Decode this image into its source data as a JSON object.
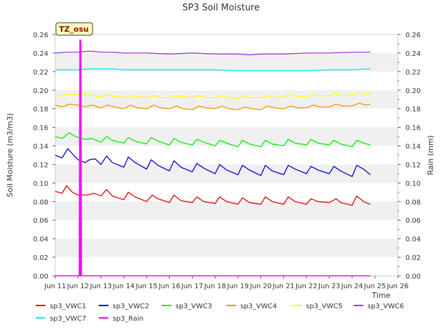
{
  "chart_data": {
    "type": "line",
    "title": "SP3 Soil Moisture",
    "xlabel": "Time",
    "ylabel": "Soil Moisture (m3/m3)",
    "y2label": "Rain (mm)",
    "badge": "TZ_osu",
    "x_unit": "days (Jun)",
    "xlim": [
      11,
      26
    ],
    "ylim": [
      0,
      0.26
    ],
    "y2lim": [
      0,
      0.26
    ],
    "x_ticks": [
      11,
      12,
      13,
      14,
      15,
      16,
      17,
      18,
      19,
      20,
      21,
      22,
      23,
      24,
      25,
      26
    ],
    "x_tick_labels": [
      "Jun 11",
      "Jun 12",
      "Jun 13",
      "Jun 14",
      "Jun 15",
      "Jun 16",
      "Jun 17",
      "Jun 18",
      "Jun 19",
      "Jun 20",
      "Jun 21",
      "Jun 22",
      "Jun 23",
      "Jun 24",
      "Jun 25",
      "Jun 26"
    ],
    "y_ticks": [
      0.0,
      0.02,
      0.04,
      0.06,
      0.08,
      0.1,
      0.12,
      0.14,
      0.16,
      0.18,
      0.2,
      0.22,
      0.24,
      0.26
    ],
    "y_tick_labels": [
      "0.00",
      "0.02",
      "0.04",
      "0.06",
      "0.08",
      "0.10",
      "0.12",
      "0.14",
      "0.16",
      "0.18",
      "0.20",
      "0.22",
      "0.24",
      "0.26"
    ],
    "y2_ticks": [
      0.0,
      0.02,
      0.04,
      0.06,
      0.08,
      0.1,
      0.12,
      0.14,
      0.16,
      0.18,
      0.2,
      0.22,
      0.24,
      0.26
    ],
    "y2_tick_labels": [
      "0.00",
      "0.02",
      "0.04",
      "0.06",
      "0.08",
      "0.10",
      "0.12",
      "0.14",
      "0.16",
      "0.18",
      "0.20",
      "0.22",
      "0.24",
      "0.26"
    ],
    "grid": "horizontal bands",
    "legend_placement": "bottom",
    "series": [
      {
        "name": "sp3_VWC1",
        "color": "#dd0000",
        "axis": "left",
        "x": [
          11.0,
          11.3,
          11.5,
          11.75,
          12.0,
          12.4,
          12.7,
          13.0,
          13.25,
          13.5,
          14.0,
          14.2,
          14.5,
          15.0,
          15.25,
          15.5,
          16.0,
          16.2,
          16.5,
          17.0,
          17.2,
          17.5,
          18.0,
          18.2,
          18.5,
          19.0,
          19.2,
          19.5,
          20.0,
          20.2,
          20.5,
          21.0,
          21.2,
          21.5,
          22.0,
          22.2,
          22.5,
          23.0,
          23.3,
          23.5,
          24.0,
          24.2,
          24.5,
          24.8
        ],
        "y": [
          0.091,
          0.089,
          0.097,
          0.09,
          0.087,
          0.087,
          0.089,
          0.086,
          0.093,
          0.086,
          0.082,
          0.09,
          0.085,
          0.08,
          0.087,
          0.083,
          0.079,
          0.087,
          0.081,
          0.079,
          0.085,
          0.08,
          0.078,
          0.085,
          0.08,
          0.077,
          0.084,
          0.079,
          0.077,
          0.085,
          0.08,
          0.077,
          0.085,
          0.08,
          0.077,
          0.083,
          0.08,
          0.079,
          0.083,
          0.079,
          0.076,
          0.086,
          0.08,
          0.077
        ]
      },
      {
        "name": "sp3_VWC2",
        "color": "#0000cc",
        "axis": "left",
        "x": [
          11.0,
          11.3,
          11.55,
          11.8,
          12.0,
          12.3,
          12.5,
          12.75,
          13.0,
          13.25,
          13.5,
          14.0,
          14.2,
          14.5,
          15.0,
          15.2,
          15.5,
          16.0,
          16.2,
          16.5,
          17.0,
          17.2,
          17.5,
          18.0,
          18.2,
          18.5,
          19.0,
          19.2,
          19.5,
          20.0,
          20.2,
          20.5,
          21.0,
          21.2,
          21.5,
          22.0,
          22.2,
          22.5,
          23.0,
          23.2,
          23.5,
          24.0,
          24.2,
          24.5,
          24.8
        ],
        "y": [
          0.13,
          0.127,
          0.137,
          0.13,
          0.125,
          0.122,
          0.125,
          0.126,
          0.12,
          0.129,
          0.122,
          0.117,
          0.128,
          0.122,
          0.115,
          0.125,
          0.119,
          0.113,
          0.124,
          0.117,
          0.112,
          0.121,
          0.116,
          0.11,
          0.12,
          0.114,
          0.109,
          0.119,
          0.114,
          0.108,
          0.119,
          0.113,
          0.109,
          0.119,
          0.115,
          0.11,
          0.118,
          0.114,
          0.11,
          0.118,
          0.113,
          0.107,
          0.119,
          0.115,
          0.109
        ]
      },
      {
        "name": "sp3_VWC3",
        "color": "#00ee00",
        "axis": "left",
        "x": [
          11.0,
          11.3,
          11.6,
          11.9,
          12.0,
          12.3,
          12.6,
          13.0,
          13.25,
          13.5,
          14.0,
          14.2,
          14.5,
          15.0,
          15.2,
          15.5,
          16.0,
          16.2,
          16.5,
          17.0,
          17.2,
          17.5,
          18.0,
          18.2,
          18.5,
          19.0,
          19.2,
          19.5,
          20.0,
          20.2,
          20.5,
          21.0,
          21.2,
          21.5,
          22.0,
          22.2,
          22.5,
          23.0,
          23.2,
          23.5,
          24.0,
          24.2,
          24.5,
          24.8
        ],
        "y": [
          0.15,
          0.148,
          0.154,
          0.15,
          0.149,
          0.147,
          0.148,
          0.144,
          0.15,
          0.146,
          0.143,
          0.149,
          0.145,
          0.142,
          0.149,
          0.145,
          0.141,
          0.148,
          0.144,
          0.141,
          0.147,
          0.144,
          0.14,
          0.146,
          0.143,
          0.139,
          0.146,
          0.142,
          0.139,
          0.146,
          0.142,
          0.14,
          0.147,
          0.143,
          0.141,
          0.147,
          0.143,
          0.141,
          0.146,
          0.142,
          0.139,
          0.146,
          0.143,
          0.141
        ]
      },
      {
        "name": "sp3_VWC4",
        "color": "#ee9900",
        "axis": "left",
        "x": [
          11.0,
          11.3,
          11.6,
          12.0,
          12.3,
          12.6,
          13.0,
          13.3,
          13.6,
          14.0,
          14.3,
          14.6,
          15.0,
          15.3,
          15.6,
          16.0,
          16.3,
          16.6,
          17.0,
          17.3,
          17.6,
          18.0,
          18.3,
          18.6,
          19.0,
          19.3,
          19.6,
          20.0,
          20.3,
          20.6,
          21.0,
          21.3,
          21.6,
          22.0,
          22.3,
          22.6,
          23.0,
          23.3,
          23.6,
          24.0,
          24.3,
          24.6,
          24.8
        ],
        "y": [
          0.184,
          0.182,
          0.185,
          0.184,
          0.182,
          0.184,
          0.181,
          0.184,
          0.182,
          0.18,
          0.184,
          0.181,
          0.18,
          0.184,
          0.181,
          0.18,
          0.183,
          0.18,
          0.179,
          0.183,
          0.181,
          0.18,
          0.183,
          0.18,
          0.179,
          0.182,
          0.18,
          0.179,
          0.183,
          0.181,
          0.18,
          0.183,
          0.181,
          0.181,
          0.184,
          0.182,
          0.182,
          0.185,
          0.183,
          0.183,
          0.186,
          0.184,
          0.185
        ]
      },
      {
        "name": "sp3_VWC5",
        "color": "#ffff00",
        "axis": "left",
        "x": [
          11.0,
          11.3,
          11.6,
          12.0,
          12.5,
          13.0,
          13.3,
          13.6,
          14.0,
          14.3,
          14.6,
          15.0,
          15.3,
          15.6,
          16.0,
          16.3,
          16.6,
          17.0,
          17.3,
          17.6,
          18.0,
          18.3,
          18.6,
          19.0,
          19.3,
          19.6,
          20.0,
          20.3,
          20.6,
          21.0,
          21.3,
          21.6,
          22.0,
          22.3,
          22.6,
          23.0,
          23.3,
          23.6,
          24.0,
          24.3,
          24.6,
          24.8
        ],
        "y": [
          0.194,
          0.194,
          0.196,
          0.195,
          0.195,
          0.193,
          0.195,
          0.193,
          0.192,
          0.194,
          0.193,
          0.192,
          0.194,
          0.192,
          0.192,
          0.194,
          0.193,
          0.192,
          0.194,
          0.192,
          0.192,
          0.194,
          0.192,
          0.191,
          0.194,
          0.192,
          0.192,
          0.194,
          0.192,
          0.193,
          0.195,
          0.193,
          0.193,
          0.195,
          0.194,
          0.194,
          0.196,
          0.194,
          0.195,
          0.197,
          0.195,
          0.197
        ]
      },
      {
        "name": "sp3_VWC6",
        "color": "#9933dd",
        "axis": "left",
        "x": [
          11.0,
          11.5,
          12.0,
          12.5,
          13.0,
          13.5,
          14.0,
          15.0,
          16.0,
          17.0,
          18.0,
          19.0,
          19.5,
          20.0,
          21.0,
          22.0,
          23.0,
          24.0,
          24.8
        ],
        "y": [
          0.24,
          0.241,
          0.241,
          0.242,
          0.241,
          0.241,
          0.24,
          0.24,
          0.239,
          0.24,
          0.239,
          0.239,
          0.238,
          0.239,
          0.239,
          0.24,
          0.24,
          0.241,
          0.241
        ]
      },
      {
        "name": "sp3_VWC7",
        "color": "#00eeee",
        "axis": "left",
        "x": [
          11.0,
          11.5,
          12.0,
          12.5,
          13.0,
          13.5,
          14.0,
          15.0,
          16.0,
          17.0,
          18.0,
          19.0,
          20.0,
          21.0,
          22.0,
          23.0,
          24.0,
          24.8
        ],
        "y": [
          0.222,
          0.222,
          0.222,
          0.223,
          0.223,
          0.223,
          0.222,
          0.222,
          0.222,
          0.222,
          0.222,
          0.221,
          0.221,
          0.221,
          0.221,
          0.222,
          0.222,
          0.223
        ]
      },
      {
        "name": "sp3_Rain",
        "color": "#ff00ff",
        "axis": "right",
        "x": [
          11.0,
          12.05,
          12.08,
          12.1,
          12.12,
          12.15,
          12.2,
          24.8
        ],
        "y": [
          0.0,
          0.0,
          0.254,
          0.0,
          0.254,
          0.0,
          0.0,
          0.0
        ]
      }
    ]
  }
}
